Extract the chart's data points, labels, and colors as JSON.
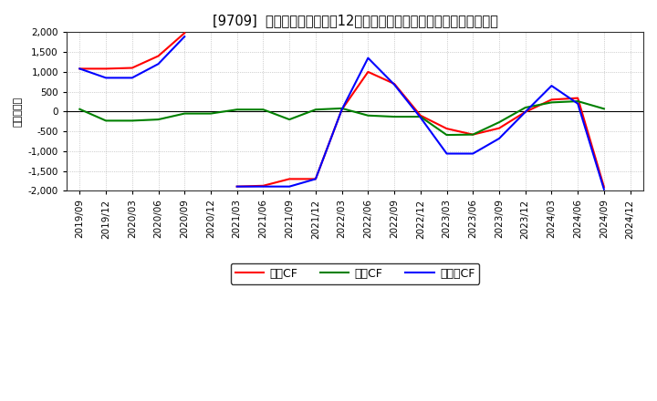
{
  "title": "[9709]  キャッシュフローの12か月移動合計の対前年同期増減額の推移",
  "ylabel": "（百万円）",
  "xlabel_dates": [
    "2019/09",
    "2019/12",
    "2020/03",
    "2020/06",
    "2020/09",
    "2020/12",
    "2021/03",
    "2021/06",
    "2021/09",
    "2021/12",
    "2022/03",
    "2022/06",
    "2022/09",
    "2022/12",
    "2023/03",
    "2023/06",
    "2023/09",
    "2023/12",
    "2024/03",
    "2024/06",
    "2024/09",
    "2024/12"
  ],
  "eigyo_cf": [
    1080,
    1080,
    1100,
    1400,
    1980,
    null,
    -1890,
    -1870,
    -1700,
    -1700,
    50,
    1000,
    700,
    -100,
    -430,
    -580,
    -420,
    -10,
    300,
    340,
    -1900,
    null
  ],
  "toshi_cf": [
    60,
    -230,
    -230,
    -200,
    -50,
    -50,
    50,
    50,
    -200,
    50,
    80,
    -100,
    -130,
    -130,
    -590,
    -580,
    -270,
    100,
    230,
    260,
    70,
    null
  ],
  "free_cf": [
    1080,
    850,
    850,
    1200,
    1890,
    null,
    -1890,
    -1890,
    -1890,
    -1700,
    50,
    1350,
    680,
    -150,
    -1060,
    -1060,
    -680,
    -10,
    650,
    200,
    -1960,
    null
  ],
  "ylim": [
    -2000,
    2000
  ],
  "yticks": [
    -2000,
    -1500,
    -1000,
    -500,
    0,
    500,
    1000,
    1500,
    2000
  ],
  "line_colors": {
    "eigyo": "#ff0000",
    "toshi": "#008000",
    "free": "#0000ff"
  },
  "legend_labels": [
    "営業CF",
    "投資CF",
    "フリーCF"
  ],
  "bg_color": "#ffffff",
  "grid_color": "#aaaaaa",
  "title_fontsize": 10.5,
  "tick_fontsize": 7.5,
  "ylabel_fontsize": 8
}
